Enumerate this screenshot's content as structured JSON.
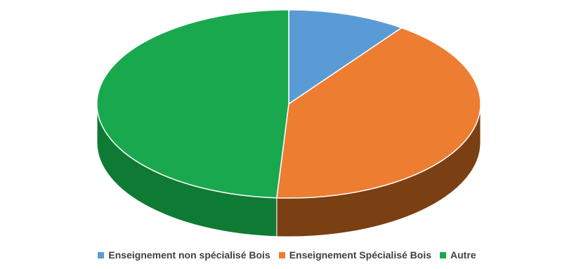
{
  "chart_data": {
    "type": "pie",
    "title": "",
    "categories": [
      "Enseignement non spécialisé Bois",
      "Enseignement Spécialisé Bois",
      "Autre"
    ],
    "values": [
      10,
      41,
      49
    ],
    "unit": "%",
    "colors": [
      "#5b9bd5",
      "#ed7d31",
      "#1aa84f"
    ],
    "side_colors": [
      "#3a6f9e",
      "#7a3f12",
      "#0f7a33"
    ],
    "style": "3d",
    "legend_position": "bottom"
  }
}
